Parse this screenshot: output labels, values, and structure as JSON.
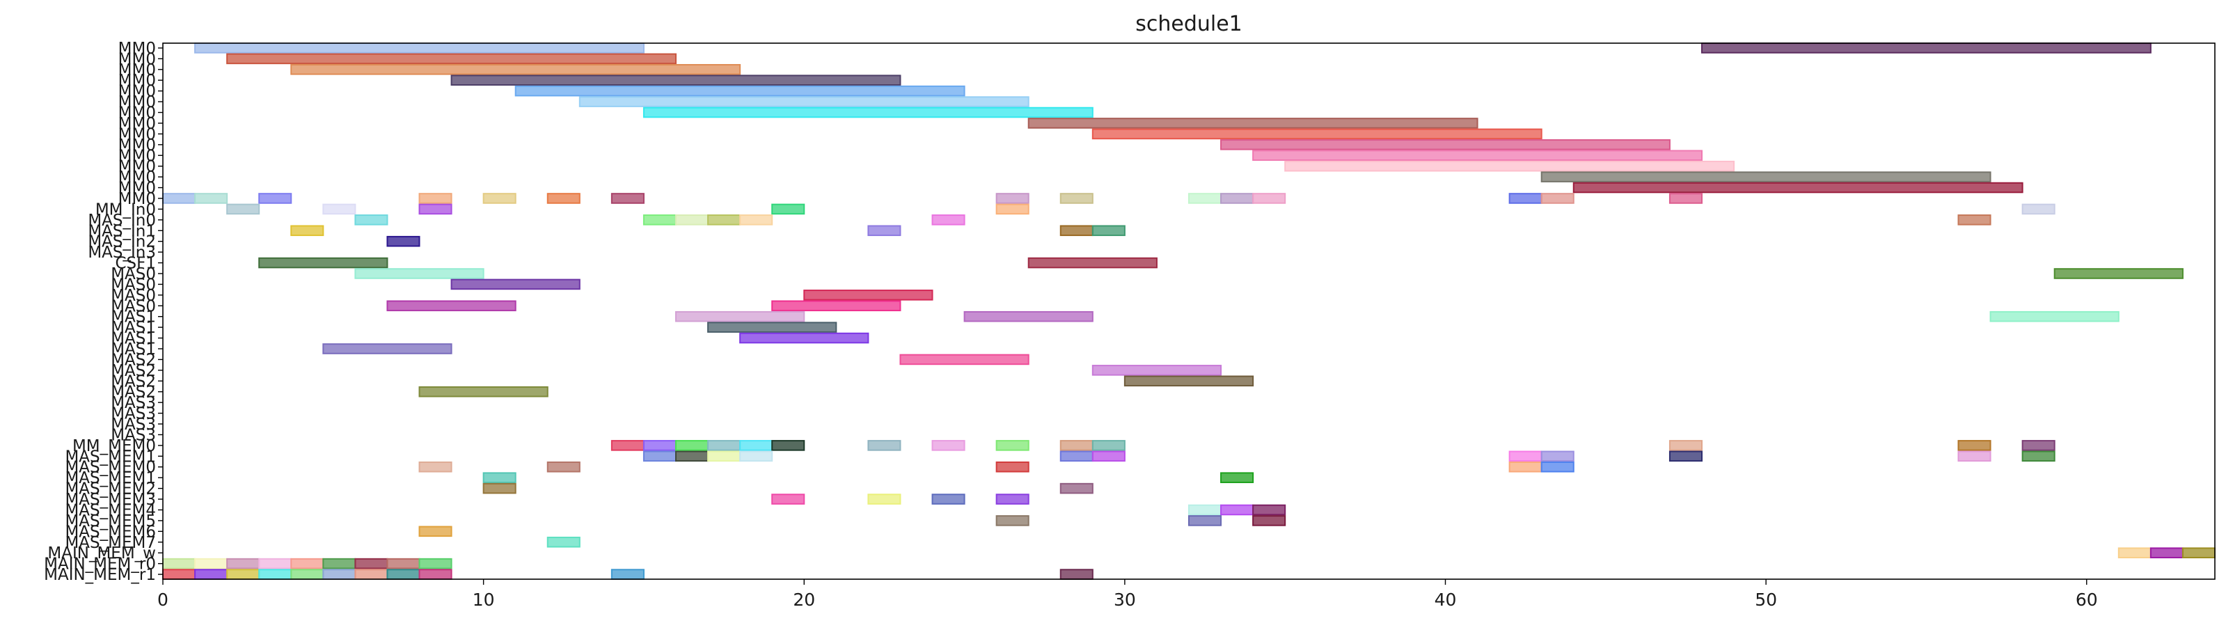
{
  "chart_data": {
    "type": "gantt",
    "title": "schedule1",
    "xlabel": "",
    "ylabel": "",
    "xlim": [
      0,
      64
    ],
    "x_ticks": [
      0,
      10,
      20,
      30,
      40,
      50,
      60
    ],
    "x_tick_labels": [
      "0",
      "10",
      "20",
      "30",
      "40",
      "50",
      "60"
    ],
    "grid": false,
    "rows": [
      "MM0",
      "MM0",
      "MM0",
      "MM0",
      "MM0",
      "MM0",
      "MM0",
      "MM0",
      "MM0",
      "MM0",
      "MM0",
      "MM0",
      "MM0",
      "MM0",
      "MM0",
      "MM_In0",
      "MAS_In0",
      "MAS_In1",
      "MAS_In2",
      "MAS_In3",
      "CSF1",
      "MAS0",
      "MAS0",
      "MAS0",
      "MAS0",
      "MAS1",
      "MAS1",
      "MAS1",
      "MAS1",
      "MAS2",
      "MAS2",
      "MAS2",
      "MAS2",
      "MAS3",
      "MAS3",
      "MAS3",
      "MAS3",
      "MM_MEM0",
      "MAS_MEM1",
      "MAS_MEM0",
      "MAS_MEM1",
      "MAS_MEM2",
      "MAS_MEM3",
      "MAS_MEM4",
      "MAS_MEM5",
      "MAS_MEM6",
      "MAS_MEM7",
      "MAIN_MEM_w",
      "MAIN_MEM_r0",
      "MAIN_MEM_r1"
    ],
    "row_labels": [
      "MM0",
      "MM0",
      "MM0",
      "MM0",
      "MM0",
      "MM0",
      "MM0",
      "MM0",
      "MM0",
      "MM0",
      "MM0",
      "MM0",
      "MM0",
      "MM0",
      "MM0",
      "MM_In0",
      "MAS_In0",
      "MAS_In1",
      "MAS_In2",
      "MAS_In3",
      "CSF1",
      "MAS0",
      "MAS0",
      "MAS0",
      "MAS0",
      "MAS1",
      "MAS1",
      "MAS1",
      "MAS1",
      "MAS2",
      "MAS2",
      "MAS2",
      "MAS2",
      "MAS3",
      "MAS3",
      "MAS3",
      "MAS3",
      "MM_MEM0",
      "MAS_MEM1",
      "MAS_MEM0",
      "MAS_MEM1",
      "MAS_MEM2",
      "MAS_MEM3",
      "MAS_MEM4",
      "MAS_MEM5",
      "MAS_MEM6",
      "MAS_MEM7",
      "MAIN_MEM_w",
      "MAIN_MEM_r0",
      "MAIN_MEM_r1"
    ],
    "tasks": [
      {
        "row": 0,
        "start": 1,
        "end": 15,
        "color": "#9bb8ea"
      },
      {
        "row": 0,
        "start": 48,
        "end": 62,
        "color": "#5b2b5e"
      },
      {
        "row": 1,
        "start": 2,
        "end": 16,
        "color": "#c9553f"
      },
      {
        "row": 2,
        "start": 4,
        "end": 18,
        "color": "#df8c55"
      },
      {
        "row": 3,
        "start": 9,
        "end": 23,
        "color": "#4d3f67"
      },
      {
        "row": 4,
        "start": 11,
        "end": 25,
        "color": "#6aa9f0"
      },
      {
        "row": 5,
        "start": 13,
        "end": 27,
        "color": "#96cff5"
      },
      {
        "row": 6,
        "start": 15,
        "end": 29,
        "color": "#33e8ee"
      },
      {
        "row": 7,
        "start": 27,
        "end": 41,
        "color": "#a85c55"
      },
      {
        "row": 8,
        "start": 29,
        "end": 43,
        "color": "#e8584c"
      },
      {
        "row": 9,
        "start": 33,
        "end": 47,
        "color": "#db5a8c"
      },
      {
        "row": 10,
        "start": 34,
        "end": 48,
        "color": "#f07ab2"
      },
      {
        "row": 11,
        "start": 35,
        "end": 49,
        "color": "#fdbfcc"
      },
      {
        "row": 12,
        "start": 43,
        "end": 57,
        "color": "#75746a"
      },
      {
        "row": 13,
        "start": 44,
        "end": 58,
        "color": "#991c3c"
      },
      {
        "row": 14,
        "start": 0,
        "end": 1,
        "color": "#9bb8ea"
      },
      {
        "row": 14,
        "start": 1,
        "end": 2,
        "color": "#a8ddd3"
      },
      {
        "row": 14,
        "start": 3,
        "end": 4,
        "color": "#7d7cf0"
      },
      {
        "row": 14,
        "start": 8,
        "end": 9,
        "color": "#f1a87a"
      },
      {
        "row": 14,
        "start": 10,
        "end": 11,
        "color": "#e3cb82"
      },
      {
        "row": 14,
        "start": 12,
        "end": 13,
        "color": "#e77a44"
      },
      {
        "row": 14,
        "start": 14,
        "end": 15,
        "color": "#a84168"
      },
      {
        "row": 14,
        "start": 26,
        "end": 27,
        "color": "#c796c8"
      },
      {
        "row": 14,
        "start": 28,
        "end": 29,
        "color": "#c9c08c"
      },
      {
        "row": 14,
        "start": 32,
        "end": 33,
        "color": "#c3f5cd"
      },
      {
        "row": 14,
        "start": 33,
        "end": 34,
        "color": "#b59bc8"
      },
      {
        "row": 14,
        "start": 34,
        "end": 35,
        "color": "#ee9fc8"
      },
      {
        "row": 14,
        "start": 42,
        "end": 43,
        "color": "#5f6ee8"
      },
      {
        "row": 14,
        "start": 43,
        "end": 44,
        "color": "#e0948e"
      },
      {
        "row": 14,
        "start": 47,
        "end": 48,
        "color": "#dd5d8f"
      },
      {
        "row": 15,
        "start": 2,
        "end": 3,
        "color": "#a8c6d0"
      },
      {
        "row": 15,
        "start": 5,
        "end": 6,
        "color": "#dcdcf5"
      },
      {
        "row": 15,
        "start": 8,
        "end": 9,
        "color": "#a94ee0"
      },
      {
        "row": 15,
        "start": 19,
        "end": 20,
        "color": "#2fd67a"
      },
      {
        "row": 15,
        "start": 26,
        "end": 27,
        "color": "#f9b078"
      },
      {
        "row": 15,
        "start": 58,
        "end": 59,
        "color": "#c8cde5"
      },
      {
        "row": 16,
        "start": 6,
        "end": 7,
        "color": "#6fd9de"
      },
      {
        "row": 16,
        "start": 15,
        "end": 16,
        "color": "#7ced7d"
      },
      {
        "row": 16,
        "start": 16,
        "end": 17,
        "color": "#d8edb5"
      },
      {
        "row": 16,
        "start": 17,
        "end": 18,
        "color": "#b8c45f"
      },
      {
        "row": 16,
        "start": 18,
        "end": 19,
        "color": "#f9d4a0"
      },
      {
        "row": 16,
        "start": 24,
        "end": 25,
        "color": "#ea74e0"
      },
      {
        "row": 16,
        "start": 56,
        "end": 57,
        "color": "#c67859"
      },
      {
        "row": 17,
        "start": 4,
        "end": 5,
        "color": "#e0c232"
      },
      {
        "row": 17,
        "start": 22,
        "end": 23,
        "color": "#8e7ae0"
      },
      {
        "row": 17,
        "start": 28,
        "end": 29,
        "color": "#9a6a24"
      },
      {
        "row": 17,
        "start": 29,
        "end": 30,
        "color": "#3f9a70"
      },
      {
        "row": 18,
        "start": 7,
        "end": 8,
        "color": "#2c178f"
      },
      {
        "row": 20,
        "start": 3,
        "end": 7,
        "color": "#3f6e3a"
      },
      {
        "row": 20,
        "start": 27,
        "end": 31,
        "color": "#9e2a43"
      },
      {
        "row": 21,
        "start": 6,
        "end": 10,
        "color": "#95ecd2"
      },
      {
        "row": 21,
        "start": 59,
        "end": 63,
        "color": "#4d8e2e"
      },
      {
        "row": 22,
        "start": 9,
        "end": 13,
        "color": "#6d36a5"
      },
      {
        "row": 23,
        "start": 20,
        "end": 24,
        "color": "#d42856"
      },
      {
        "row": 24,
        "start": 7,
        "end": 11,
        "color": "#b03aaa"
      },
      {
        "row": 24,
        "start": 19,
        "end": 23,
        "color": "#ef2f8e"
      },
      {
        "row": 25,
        "start": 16,
        "end": 20,
        "color": "#d3a0d4"
      },
      {
        "row": 25,
        "start": 25,
        "end": 29,
        "color": "#b367c1"
      },
      {
        "row": 25,
        "start": 57,
        "end": 61,
        "color": "#8ff1c8"
      },
      {
        "row": 26,
        "start": 17,
        "end": 21,
        "color": "#4a5f6a"
      },
      {
        "row": 27,
        "start": 18,
        "end": 22,
        "color": "#7d37e5"
      },
      {
        "row": 28,
        "start": 5,
        "end": 9,
        "color": "#7a6cbd"
      },
      {
        "row": 29,
        "start": 23,
        "end": 27,
        "color": "#ef4d98"
      },
      {
        "row": 30,
        "start": 29,
        "end": 33,
        "color": "#c77ad7"
      },
      {
        "row": 31,
        "start": 30,
        "end": 34,
        "color": "#6f5c3b"
      },
      {
        "row": 32,
        "start": 8,
        "end": 12,
        "color": "#7e8a3a"
      },
      {
        "row": 37,
        "start": 14,
        "end": 15,
        "color": "#e23a5e"
      },
      {
        "row": 37,
        "start": 15,
        "end": 16,
        "color": "#8a5cf5"
      },
      {
        "row": 37,
        "start": 16,
        "end": 17,
        "color": "#49de53"
      },
      {
        "row": 37,
        "start": 17,
        "end": 18,
        "color": "#7fbac1"
      },
      {
        "row": 37,
        "start": 18,
        "end": 19,
        "color": "#4ee3f4"
      },
      {
        "row": 37,
        "start": 19,
        "end": 20,
        "color": "#1d3a2a"
      },
      {
        "row": 37,
        "start": 22,
        "end": 23,
        "color": "#8fb3c0"
      },
      {
        "row": 37,
        "start": 24,
        "end": 25,
        "color": "#e89be0"
      },
      {
        "row": 37,
        "start": 26,
        "end": 27,
        "color": "#7fe873"
      },
      {
        "row": 37,
        "start": 28,
        "end": 29,
        "color": "#d49a7b"
      },
      {
        "row": 37,
        "start": 29,
        "end": 30,
        "color": "#6ab3a8"
      },
      {
        "row": 37,
        "start": 47,
        "end": 48,
        "color": "#e0a68c"
      },
      {
        "row": 37,
        "start": 56,
        "end": 57,
        "color": "#b37628"
      },
      {
        "row": 37,
        "start": 58,
        "end": 59,
        "color": "#7b3c74"
      },
      {
        "row": 38,
        "start": 15,
        "end": 16,
        "color": "#6b83dd"
      },
      {
        "row": 38,
        "start": 16,
        "end": 17,
        "color": "#3f4a3a"
      },
      {
        "row": 38,
        "start": 17,
        "end": 18,
        "color": "#e5f5a5"
      },
      {
        "row": 38,
        "start": 18,
        "end": 19,
        "color": "#c3e5f0"
      },
      {
        "row": 38,
        "start": 28,
        "end": 29,
        "color": "#6d76db"
      },
      {
        "row": 38,
        "start": 29,
        "end": 30,
        "color": "#b94ee8"
      },
      {
        "row": 38,
        "start": 42,
        "end": 43,
        "color": "#f77ce7"
      },
      {
        "row": 38,
        "start": 43,
        "end": 44,
        "color": "#9b8fe0"
      },
      {
        "row": 38,
        "start": 47,
        "end": 48,
        "color": "#2d2d6f"
      },
      {
        "row": 38,
        "start": 56,
        "end": 57,
        "color": "#e19ad8"
      },
      {
        "row": 38,
        "start": 58,
        "end": 59,
        "color": "#3f8a3a"
      },
      {
        "row": 39,
        "start": 8,
        "end": 9,
        "color": "#dfac96"
      },
      {
        "row": 39,
        "start": 12,
        "end": 13,
        "color": "#b47568"
      },
      {
        "row": 39,
        "start": 26,
        "end": 27,
        "color": "#d23c3c"
      },
      {
        "row": 39,
        "start": 42,
        "end": 43,
        "color": "#f9a97a"
      },
      {
        "row": 39,
        "start": 43,
        "end": 44,
        "color": "#4f82ee"
      },
      {
        "row": 40,
        "start": 10,
        "end": 11,
        "color": "#52c6b4"
      },
      {
        "row": 40,
        "start": 33,
        "end": 34,
        "color": "#1ca21c"
      },
      {
        "row": 41,
        "start": 10,
        "end": 11,
        "color": "#94753a"
      },
      {
        "row": 41,
        "start": 28,
        "end": 29,
        "color": "#8f5c80"
      },
      {
        "row": 42,
        "start": 19,
        "end": 20,
        "color": "#ef4aa8"
      },
      {
        "row": 42,
        "start": 22,
        "end": 23,
        "color": "#eaf07c"
      },
      {
        "row": 42,
        "start": 24,
        "end": 25,
        "color": "#5d6cbd"
      },
      {
        "row": 42,
        "start": 26,
        "end": 27,
        "color": "#8a3ee0"
      },
      {
        "row": 43,
        "start": 32,
        "end": 33,
        "color": "#b7efe6"
      },
      {
        "row": 43,
        "start": 33,
        "end": 34,
        "color": "#b44af0"
      },
      {
        "row": 43,
        "start": 34,
        "end": 35,
        "color": "#7c1f62"
      },
      {
        "row": 44,
        "start": 26,
        "end": 27,
        "color": "#8a7766"
      },
      {
        "row": 44,
        "start": 32,
        "end": 33,
        "color": "#6a6ab3"
      },
      {
        "row": 44,
        "start": 34,
        "end": 35,
        "color": "#7a1a3e"
      },
      {
        "row": 45,
        "start": 8,
        "end": 9,
        "color": "#e0a23c"
      },
      {
        "row": 46,
        "start": 12,
        "end": 13,
        "color": "#5fe0c1"
      },
      {
        "row": 47,
        "start": 61,
        "end": 62,
        "color": "#f8cf8a"
      },
      {
        "row": 47,
        "start": 62,
        "end": 63,
        "color": "#9b1aa4"
      },
      {
        "row": 47,
        "start": 63,
        "end": 64,
        "color": "#9c8d21"
      },
      {
        "row": 48,
        "start": 0,
        "end": 1,
        "color": "#c5e79c"
      },
      {
        "row": 48,
        "start": 1,
        "end": 2,
        "color": "#f4f3bb"
      },
      {
        "row": 48,
        "start": 2,
        "end": 3,
        "color": "#c88fb2"
      },
      {
        "row": 48,
        "start": 3,
        "end": 4,
        "color": "#f0b4e0"
      },
      {
        "row": 48,
        "start": 4,
        "end": 5,
        "color": "#f59b8e"
      },
      {
        "row": 48,
        "start": 5,
        "end": 6,
        "color": "#4f9b4c"
      },
      {
        "row": 48,
        "start": 6,
        "end": 7,
        "color": "#94304a"
      },
      {
        "row": 48,
        "start": 7,
        "end": 8,
        "color": "#b76a64"
      },
      {
        "row": 48,
        "start": 8,
        "end": 9,
        "color": "#57cf6a"
      },
      {
        "row": 49,
        "start": 0,
        "end": 1,
        "color": "#e0404c"
      },
      {
        "row": 49,
        "start": 1,
        "end": 2,
        "color": "#7f2ee0"
      },
      {
        "row": 49,
        "start": 2,
        "end": 3,
        "color": "#d2c23a"
      },
      {
        "row": 49,
        "start": 3,
        "end": 4,
        "color": "#4ce8e3"
      },
      {
        "row": 49,
        "start": 4,
        "end": 5,
        "color": "#7ee07a"
      },
      {
        "row": 49,
        "start": 5,
        "end": 6,
        "color": "#8aa4d6"
      },
      {
        "row": 49,
        "start": 6,
        "end": 7,
        "color": "#e59480"
      },
      {
        "row": 49,
        "start": 7,
        "end": 8,
        "color": "#2e8a8a"
      },
      {
        "row": 49,
        "start": 8,
        "end": 9,
        "color": "#c3317a"
      },
      {
        "row": 49,
        "start": 14,
        "end": 15,
        "color": "#3f9ad0"
      },
      {
        "row": 49,
        "start": 28,
        "end": 29,
        "color": "#6b2a4f"
      }
    ]
  }
}
